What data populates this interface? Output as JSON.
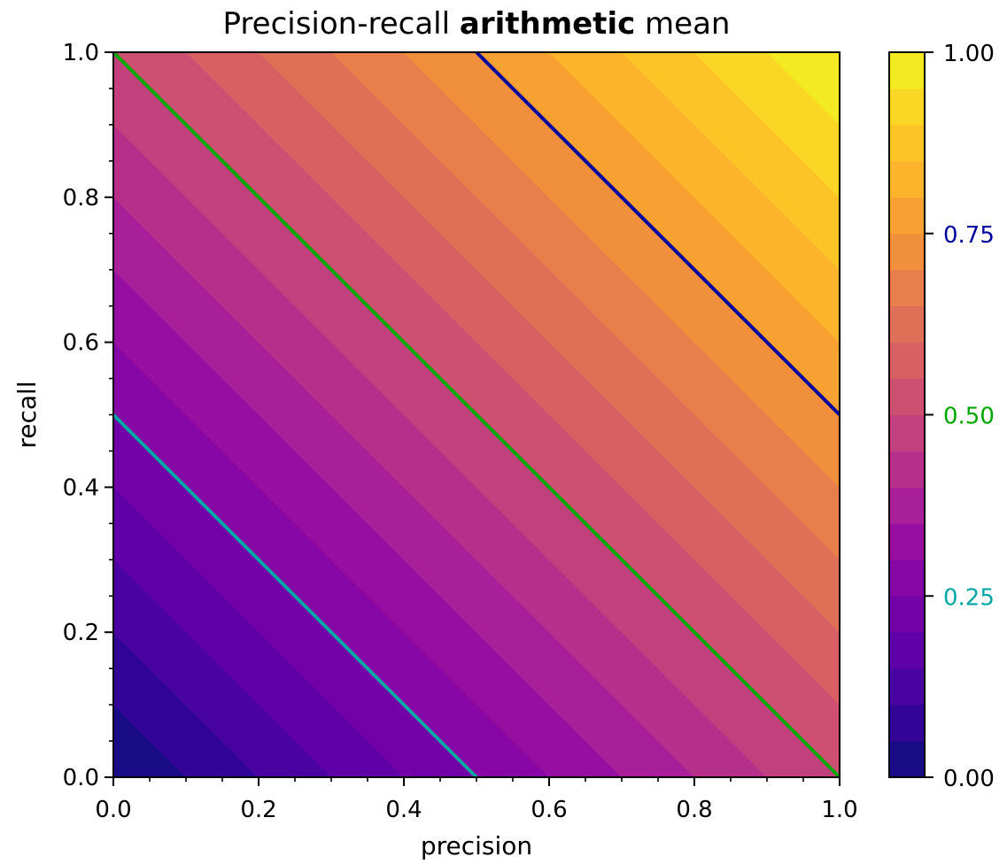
{
  "chart_data": {
    "type": "heatmap",
    "title_prefix": "Precision-recall ",
    "title_bold": "arithmetic",
    "title_suffix": " mean",
    "xlabel": "precision",
    "ylabel": "recall",
    "xlim": [
      0.0,
      1.0
    ],
    "ylim": [
      0.0,
      1.0
    ],
    "x_ticks": [
      {
        "value": 0.0,
        "label": "0.0"
      },
      {
        "value": 0.2,
        "label": "0.2"
      },
      {
        "value": 0.4,
        "label": "0.4"
      },
      {
        "value": 0.6,
        "label": "0.6"
      },
      {
        "value": 0.8,
        "label": "0.8"
      },
      {
        "value": 1.0,
        "label": "1.0"
      }
    ],
    "y_ticks": [
      {
        "value": 0.0,
        "label": "0.0"
      },
      {
        "value": 0.2,
        "label": "0.2"
      },
      {
        "value": 0.4,
        "label": "0.4"
      },
      {
        "value": 0.6,
        "label": "0.6"
      },
      {
        "value": 0.8,
        "label": "0.8"
      },
      {
        "value": 1.0,
        "label": "1.0"
      }
    ],
    "minor_tick_step": 0.05,
    "function": "(precision + recall) / 2",
    "colormap": "plasma",
    "filled_levels": [
      0.0,
      0.05,
      0.1,
      0.15,
      0.2,
      0.25,
      0.3,
      0.35,
      0.4,
      0.45,
      0.5,
      0.55,
      0.6,
      0.65,
      0.7,
      0.75,
      0.8,
      0.85,
      0.9,
      0.95,
      1.0
    ],
    "level_colors": [
      "#1a0c87",
      "#320597",
      "#4903a0",
      "#5e01a6",
      "#7201a8",
      "#8606a6",
      "#970ea2",
      "#a81f99",
      "#b6308b",
      "#c3407e",
      "#cd4f71",
      "#d86064",
      "#e06f57",
      "#e87e4b",
      "#f0903d",
      "#f6a131",
      "#fbb42b",
      "#fdc426",
      "#fbd725",
      "#f3ea22"
    ],
    "contour_lines": [
      {
        "level": 0.25,
        "color": "#00a5a5"
      },
      {
        "level": 0.5,
        "color": "#00a600"
      },
      {
        "level": 0.75,
        "color": "#00009e"
      }
    ],
    "colorbar": {
      "range": [
        0.0,
        1.0
      ],
      "ticks": [
        {
          "value": 0.0,
          "label": "0.00",
          "color": "#000000"
        },
        {
          "value": 0.25,
          "label": "0.25",
          "color": "#00a5a5"
        },
        {
          "value": 0.5,
          "label": "0.50",
          "color": "#00a600"
        },
        {
          "value": 0.75,
          "label": "0.75",
          "color": "#00009e"
        },
        {
          "value": 1.0,
          "label": "1.00",
          "color": "#000000"
        }
      ]
    }
  }
}
